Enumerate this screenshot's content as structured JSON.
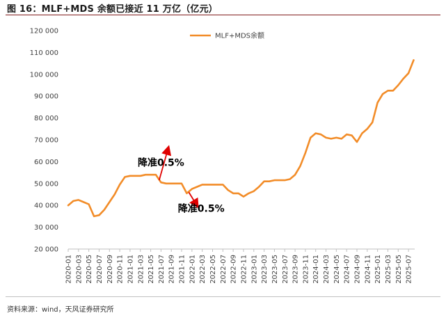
{
  "figure": {
    "title": "图 16：MLF+MDS 余额已接近 11 万亿（亿元）",
    "source": "资料来源：wind，天风证券研究所"
  },
  "annotations": [
    {
      "label": "降准0.5%",
      "x": 2021.5,
      "y": 58000,
      "arrow_from": [
        2021.47,
        51500
      ],
      "arrow_to": [
        2021.62,
        66500
      ]
    },
    {
      "label": "降准0.5%",
      "x": 2022.15,
      "y": 37000,
      "arrow_from": [
        2021.95,
        46000
      ],
      "arrow_to": [
        2022.09,
        39500
      ]
    }
  ],
  "chart_data": {
    "type": "line",
    "title": "",
    "xlabel": "",
    "ylabel": "",
    "xlim": [
      2020.0,
      2025.6
    ],
    "ylim": [
      20000,
      120000
    ],
    "yticks": [
      20000,
      30000,
      40000,
      50000,
      60000,
      70000,
      80000,
      90000,
      100000,
      110000,
      120000
    ],
    "ytick_labels": [
      "20 000",
      "30 000",
      "40 000",
      "50 000",
      "60 000",
      "70 000",
      "80 000",
      "90 000",
      "100 000",
      "110 000",
      "120 000"
    ],
    "xtick_labels": [
      "2020-01",
      "2020-03",
      "2020-05",
      "2020-07",
      "2020-09",
      "2020-11",
      "2021-01",
      "2021-03",
      "2021-05",
      "2021-07",
      "2021-09",
      "2021-11",
      "2022-01",
      "2022-03",
      "2022-05",
      "2022-07",
      "2022-09",
      "2022-11",
      "2023-01",
      "2023-03",
      "2023-05",
      "2023-07",
      "2023-09",
      "2023-11",
      "2024-01",
      "2024-03",
      "2024-05",
      "2024-07",
      "2024-09",
      "2024-11",
      "2025-01",
      "2025-03",
      "2025-05",
      "2025-07"
    ],
    "legend_position": "top-right",
    "grid": false,
    "series": [
      {
        "name": "MLF+MDS余额",
        "color": "#F28C28",
        "x": [
          "2020-01-01",
          "2020-02-01",
          "2020-03-01",
          "2020-04-01",
          "2020-05-01",
          "2020-06-01",
          "2020-07-01",
          "2020-08-01",
          "2020-09-01",
          "2020-10-01",
          "2020-11-01",
          "2020-12-01",
          "2021-01-01",
          "2021-02-01",
          "2021-03-01",
          "2021-04-01",
          "2021-05-01",
          "2021-06-01",
          "2021-07-01",
          "2021-08-01",
          "2021-09-01",
          "2021-10-01",
          "2021-11-01",
          "2021-12-01",
          "2022-01-01",
          "2022-02-01",
          "2022-03-01",
          "2022-04-01",
          "2022-05-01",
          "2022-06-01",
          "2022-07-01",
          "2022-08-01",
          "2022-09-01",
          "2022-10-01",
          "2022-11-01",
          "2022-12-01",
          "2023-01-01",
          "2023-02-01",
          "2023-03-01",
          "2023-04-01",
          "2023-05-01",
          "2023-06-01",
          "2023-07-01",
          "2023-08-01",
          "2023-09-01",
          "2023-10-01",
          "2023-11-01",
          "2023-12-01",
          "2024-01-01",
          "2024-02-01",
          "2024-03-01",
          "2024-04-01",
          "2024-05-01",
          "2024-06-01",
          "2024-07-01",
          "2024-08-01",
          "2024-09-01",
          "2024-10-01",
          "2024-11-01",
          "2024-12-01",
          "2025-01-01",
          "2025-02-01",
          "2025-03-01",
          "2025-04-01",
          "2025-05-01",
          "2025-06-01",
          "2025-07-01",
          "2025-08-01"
        ],
        "values": [
          40000,
          42000,
          42500,
          41500,
          40500,
          35000,
          35500,
          38000,
          41500,
          45000,
          49500,
          53000,
          53500,
          53500,
          53500,
          54000,
          54000,
          54000,
          50500,
          50000,
          50000,
          50000,
          50000,
          45500,
          47500,
          48500,
          49500,
          49500,
          49500,
          49500,
          49500,
          47000,
          45500,
          45500,
          44000,
          45500,
          46500,
          48500,
          51000,
          51000,
          51500,
          51500,
          51500,
          52000,
          54000,
          58000,
          64000,
          71000,
          73000,
          72500,
          71000,
          70500,
          71000,
          70500,
          72500,
          72000,
          69000,
          73000,
          75000,
          78000,
          87000,
          91000,
          92500,
          92500,
          95000,
          98000,
          100500,
          106500
        ]
      }
    ]
  }
}
